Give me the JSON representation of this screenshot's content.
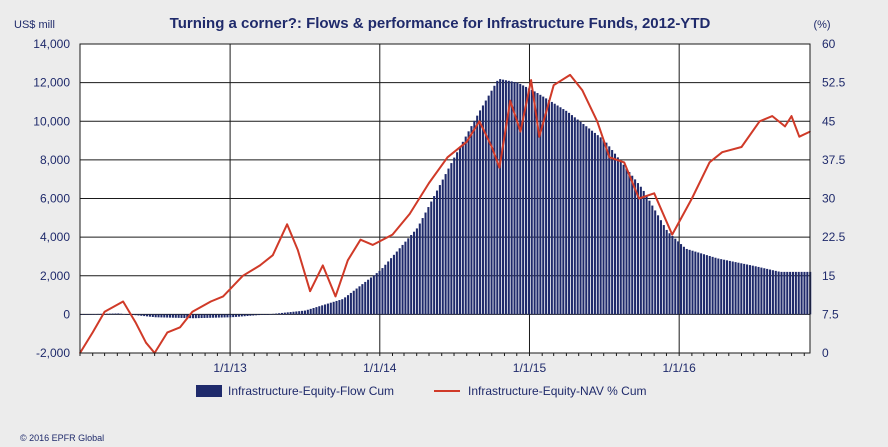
{
  "chart_data": {
    "type": "bar+line",
    "title": "Turning a corner?: Flows & performance for Infrastructure Funds, 2012-YTD",
    "left_axis_unit": "US$ mill",
    "right_axis_unit": "(%)",
    "ylim_left": [
      -2000,
      14000
    ],
    "ylim_right": [
      0,
      60
    ],
    "yticks_left": [
      "14,000",
      "12,000",
      "10,000",
      "8,000",
      "6,000",
      "4,000",
      "2,000",
      "0",
      "-2,000"
    ],
    "yticks_right": [
      "60",
      "52.5",
      "45",
      "37.5",
      "30",
      "22.5",
      "15",
      "7.5",
      "0"
    ],
    "x_start": "2012-01-01",
    "x_end": "2016-11-15",
    "x_ticks": [
      {
        "date": "2013-01-01",
        "label": "1/1/13"
      },
      {
        "date": "2014-01-01",
        "label": "1/1/14"
      },
      {
        "date": "2015-01-01",
        "label": "1/1/15"
      },
      {
        "date": "2016-01-01",
        "label": "1/1/16"
      }
    ],
    "grid": true,
    "legend_position": "bottom",
    "series": [
      {
        "name": "Infrastructure-Equity-Flow Cum",
        "type": "bar",
        "axis": "left",
        "color": "#1f2a6b",
        "points": [
          [
            "2012-01-01",
            0
          ],
          [
            "2012-04-01",
            50
          ],
          [
            "2012-07-01",
            -150
          ],
          [
            "2012-10-01",
            -200
          ],
          [
            "2013-01-01",
            -150
          ],
          [
            "2013-04-01",
            0
          ],
          [
            "2013-07-01",
            200
          ],
          [
            "2013-10-01",
            800
          ],
          [
            "2014-01-01",
            2300
          ],
          [
            "2014-04-01",
            4500
          ],
          [
            "2014-07-01",
            8200
          ],
          [
            "2014-09-01",
            10600
          ],
          [
            "2014-10-15",
            12200
          ],
          [
            "2014-12-01",
            12000
          ],
          [
            "2015-01-15",
            11500
          ],
          [
            "2015-04-01",
            10500
          ],
          [
            "2015-07-01",
            9000
          ],
          [
            "2015-10-01",
            6500
          ],
          [
            "2015-12-01",
            4300
          ],
          [
            "2016-01-15",
            3400
          ],
          [
            "2016-04-01",
            2900
          ],
          [
            "2016-07-01",
            2500
          ],
          [
            "2016-09-01",
            2200
          ],
          [
            "2016-11-15",
            2200
          ]
        ]
      },
      {
        "name": "Infrastructure-Equity-NAV % Cum",
        "type": "line",
        "axis": "right",
        "color": "#d03a28",
        "points": [
          [
            "2012-01-01",
            0
          ],
          [
            "2012-02-01",
            4
          ],
          [
            "2012-03-01",
            8
          ],
          [
            "2012-04-15",
            10
          ],
          [
            "2012-05-15",
            6
          ],
          [
            "2012-06-10",
            2
          ],
          [
            "2012-07-01",
            0
          ],
          [
            "2012-08-01",
            4
          ],
          [
            "2012-09-01",
            5
          ],
          [
            "2012-10-01",
            8
          ],
          [
            "2012-11-15",
            10
          ],
          [
            "2012-12-15",
            11
          ],
          [
            "2013-02-01",
            15
          ],
          [
            "2013-03-15",
            17
          ],
          [
            "2013-04-15",
            19
          ],
          [
            "2013-05-20",
            25
          ],
          [
            "2013-06-15",
            20
          ],
          [
            "2013-07-15",
            12
          ],
          [
            "2013-08-15",
            17
          ],
          [
            "2013-09-15",
            11
          ],
          [
            "2013-10-15",
            18
          ],
          [
            "2013-11-15",
            22
          ],
          [
            "2013-12-15",
            21
          ],
          [
            "2014-02-01",
            23
          ],
          [
            "2014-03-15",
            27
          ],
          [
            "2014-05-01",
            33
          ],
          [
            "2014-06-15",
            38
          ],
          [
            "2014-08-01",
            41
          ],
          [
            "2014-09-01",
            45
          ],
          [
            "2014-10-01",
            40
          ],
          [
            "2014-10-20",
            36
          ],
          [
            "2014-11-15",
            49
          ],
          [
            "2014-12-10",
            43
          ],
          [
            "2015-01-05",
            53
          ],
          [
            "2015-01-25",
            42
          ],
          [
            "2015-03-01",
            52
          ],
          [
            "2015-04-10",
            54
          ],
          [
            "2015-05-10",
            51
          ],
          [
            "2015-06-15",
            45
          ],
          [
            "2015-07-15",
            38
          ],
          [
            "2015-08-20",
            37
          ],
          [
            "2015-09-25",
            30
          ],
          [
            "2015-11-01",
            31
          ],
          [
            "2015-12-15",
            23
          ],
          [
            "2016-02-01",
            30
          ],
          [
            "2016-03-15",
            37
          ],
          [
            "2016-04-15",
            39
          ],
          [
            "2016-06-01",
            40
          ],
          [
            "2016-07-15",
            45
          ],
          [
            "2016-08-15",
            46
          ],
          [
            "2016-09-15",
            44
          ],
          [
            "2016-10-01",
            46
          ],
          [
            "2016-10-20",
            42
          ],
          [
            "2016-11-15",
            43
          ]
        ]
      }
    ],
    "copyright": "© 2016 EPFR Global"
  }
}
